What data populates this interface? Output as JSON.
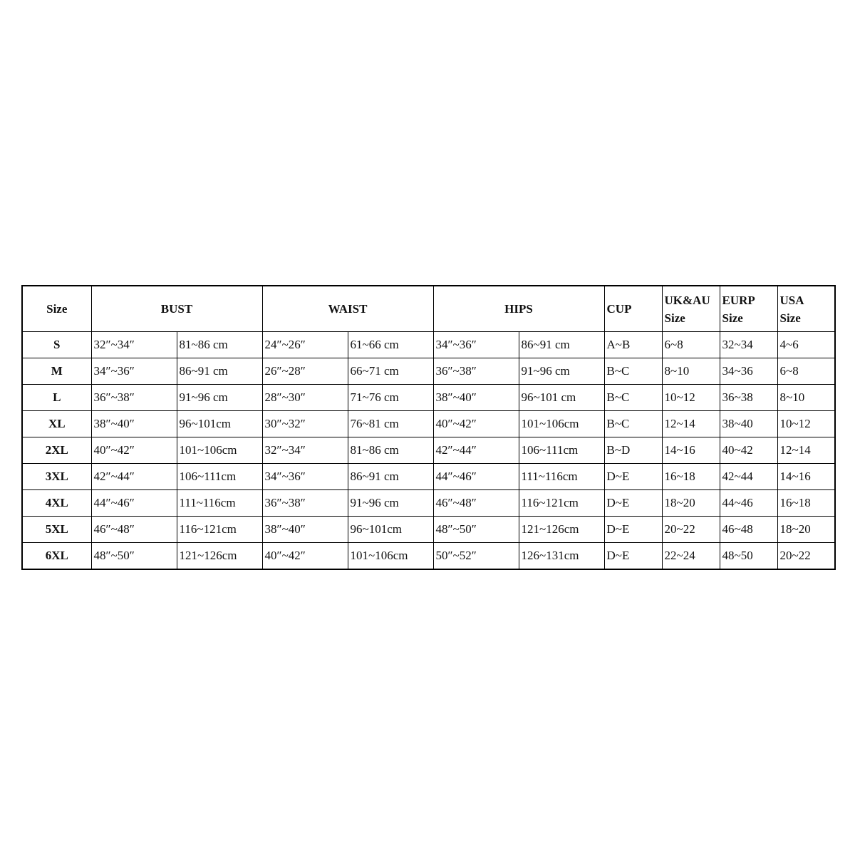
{
  "table": {
    "header": [
      "Size",
      "BUST",
      "WAIST",
      "HIPS",
      "CUP",
      "UK&AU Size",
      "EURP Size",
      "USA Size"
    ],
    "rows": [
      [
        "S",
        "32″~34″",
        "81~86 cm",
        "24″~26″",
        "61~66 cm",
        "34″~36″",
        "86~91 cm",
        "A~B",
        "6~8",
        "32~34",
        "4~6"
      ],
      [
        "M",
        "34″~36″",
        "86~91 cm",
        "26″~28″",
        "66~71 cm",
        "36″~38″",
        "91~96 cm",
        "B~C",
        "8~10",
        "34~36",
        "6~8"
      ],
      [
        "L",
        "36″~38″",
        "91~96 cm",
        "28″~30″",
        "71~76 cm",
        "38″~40″",
        "96~101 cm",
        "B~C",
        "10~12",
        "36~38",
        "8~10"
      ],
      [
        "XL",
        "38″~40″",
        "96~101cm",
        "30″~32″",
        "76~81 cm",
        "40″~42″",
        "101~106cm",
        "B~C",
        "12~14",
        "38~40",
        "10~12"
      ],
      [
        "2XL",
        "40″~42″",
        "101~106cm",
        "32″~34″",
        "81~86 cm",
        "42″~44″",
        "106~111cm",
        "B~D",
        "14~16",
        "40~42",
        "12~14"
      ],
      [
        "3XL",
        "42″~44″",
        "106~111cm",
        "34″~36″",
        "86~91 cm",
        "44″~46″",
        "111~116cm",
        "D~E",
        "16~18",
        "42~44",
        "14~16"
      ],
      [
        "4XL",
        "44″~46″",
        "111~116cm",
        "36″~38″",
        "91~96 cm",
        "46″~48″",
        "116~121cm",
        "D~E",
        "18~20",
        "44~46",
        "16~18"
      ],
      [
        "5XL",
        "46″~48″",
        "116~121cm",
        "38″~40″",
        "96~101cm",
        "48″~50″",
        "121~126cm",
        "D~E",
        "20~22",
        "46~48",
        "18~20"
      ],
      [
        "6XL",
        "48″~50″",
        "121~126cm",
        "40″~42″",
        "101~106cm",
        "50″~52″",
        "126~131cm",
        "D~E",
        "22~24",
        "48~50",
        "20~22"
      ]
    ]
  }
}
